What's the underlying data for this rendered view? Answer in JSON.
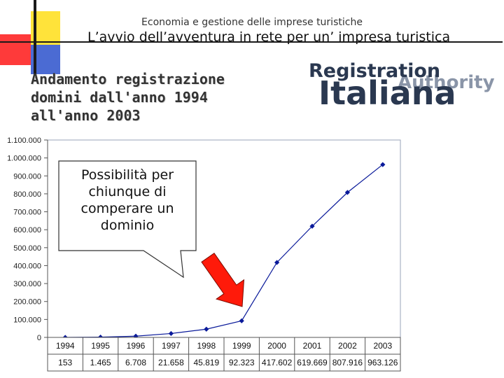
{
  "header": {
    "subtitle": "Economia e gestione delle imprese turistiche",
    "title": "L’avvio dell’avventura in rete per un’ impresa turistica"
  },
  "slide": {
    "heading": "Andamento registrazione domini dall'anno 1994 all'anno 2003"
  },
  "logo": {
    "line1": "Registration",
    "line2": "Italiana",
    "line3": "Authority"
  },
  "callout": {
    "text": "Possibilità per chiunque di comperare un dominio"
  },
  "colors": {
    "line": "#0a1a9a",
    "plot_bg": "#ffffff",
    "chart_border": "#9aa3b8",
    "arrow": "#ff1a0a",
    "deco_red": "#fe3a3a",
    "deco_yellow": "#ffe33a",
    "deco_blue": "#4b6bd3"
  },
  "chart_data": {
    "type": "line",
    "categories": [
      "1994",
      "1995",
      "1996",
      "1997",
      "1998",
      "1999",
      "2000",
      "2001",
      "2002",
      "2003"
    ],
    "values": [
      153,
      1465,
      6708,
      21658,
      45819,
      92323,
      417602,
      619669,
      807916,
      963126
    ],
    "value_labels": [
      "153",
      "1.465",
      "6.708",
      "21.658",
      "45.819",
      "92.323",
      "417.602",
      "619.669",
      "807.916",
      "963.126"
    ],
    "ylim": [
      0,
      1100000
    ],
    "yticks": [
      0,
      100000,
      200000,
      300000,
      400000,
      500000,
      600000,
      700000,
      800000,
      900000,
      1000000,
      1100000
    ],
    "ytick_labels": [
      "0",
      "100.000",
      "200.000",
      "300.000",
      "400.000",
      "500.000",
      "600.000",
      "700.000",
      "800.000",
      "900.000",
      "1.000.000",
      "1.100.000"
    ],
    "grid": false,
    "marker": "diamond",
    "table_below": true
  }
}
